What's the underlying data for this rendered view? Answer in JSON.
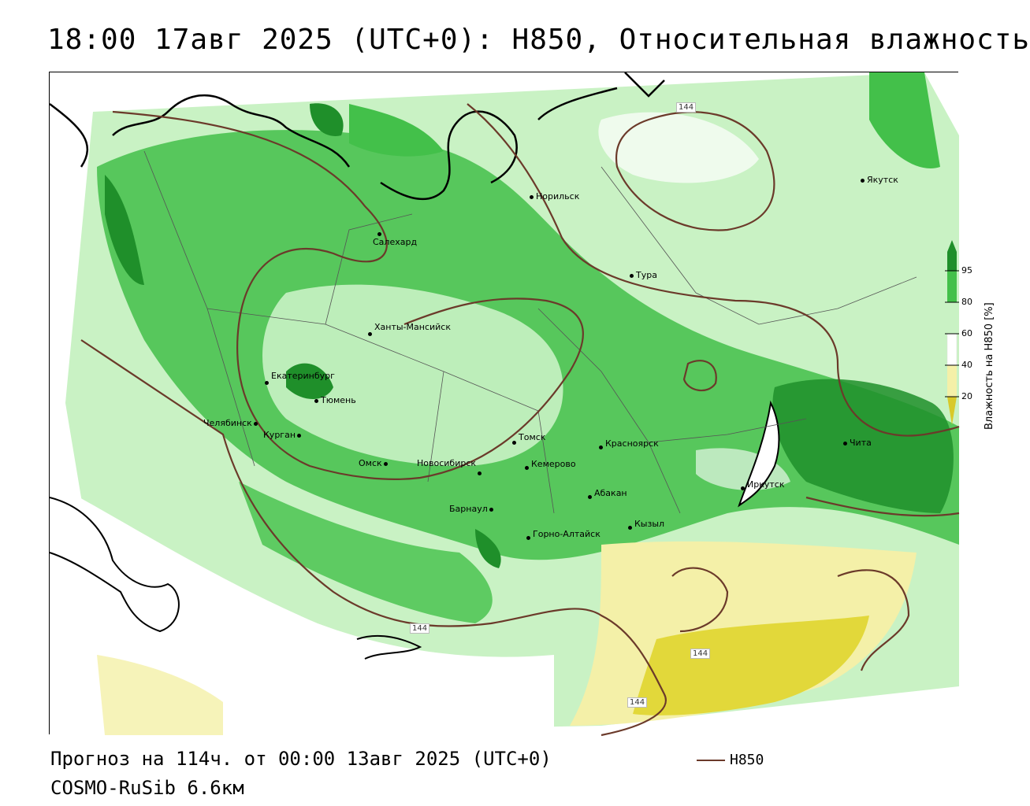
{
  "title": "18:00 17авг 2025 (UTC+0): H850, Относительная влажность",
  "footer": {
    "forecast": "Прогноз на 114ч. от 00:00 13авг 2025 (UTC+0)",
    "model": "COSMO-RuSib 6.6км"
  },
  "legend": {
    "contour_label": "H850",
    "contour_color": "#6b3a2a"
  },
  "colorbar": {
    "title": "Влажность на H850 [%]",
    "ticks": [
      "95",
      "80",
      "60",
      "40",
      "20"
    ],
    "colors": {
      "95": "#1f8f2a",
      "80": "#43c04a",
      "60": "#c9f2c4",
      "40": "#ffffff",
      "20": "#f4f0a8",
      "low": "#e2d83a"
    }
  },
  "contour_labels": [
    "144",
    "144",
    "144",
    "144"
  ],
  "cities": [
    {
      "name": "Норильск"
    },
    {
      "name": "Якутск"
    },
    {
      "name": "Салехард"
    },
    {
      "name": "Тура"
    },
    {
      "name": "Ханты-Мансийск"
    },
    {
      "name": "Екатеринбург"
    },
    {
      "name": "Тюмень"
    },
    {
      "name": "Челябинск"
    },
    {
      "name": "Курган"
    },
    {
      "name": "Омск"
    },
    {
      "name": "Новосибирск"
    },
    {
      "name": "Томск"
    },
    {
      "name": "Кемерово"
    },
    {
      "name": "Красноярск"
    },
    {
      "name": "Барнаул"
    },
    {
      "name": "Абакан"
    },
    {
      "name": "Кызыл"
    },
    {
      "name": "Горно-Алтайск"
    },
    {
      "name": "Иркутск"
    },
    {
      "name": "Чита"
    }
  ]
}
